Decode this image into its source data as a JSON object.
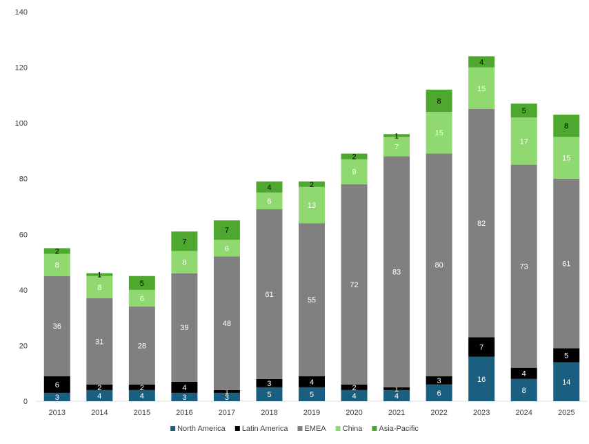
{
  "chart_data": {
    "type": "bar",
    "stacked": true,
    "categories": [
      "2013",
      "2014",
      "2015",
      "2016",
      "2017",
      "2018",
      "2019",
      "2020",
      "2021",
      "2022",
      "2023",
      "2024",
      "2025"
    ],
    "series": [
      {
        "name": "North America",
        "color": "#1a5f80",
        "values": [
          3,
          4,
          4,
          3,
          3,
          5,
          5,
          4,
          4,
          6,
          16,
          8,
          14
        ],
        "label_color": "#ffffff"
      },
      {
        "name": "Latin America",
        "color": "#000000",
        "values": [
          6,
          2,
          2,
          4,
          1,
          3,
          4,
          2,
          1,
          3,
          7,
          4,
          5
        ],
        "label_color": "#ffffff"
      },
      {
        "name": "EMEA",
        "color": "#808080",
        "values": [
          36,
          31,
          28,
          39,
          48,
          61,
          55,
          72,
          83,
          80,
          82,
          73,
          61
        ],
        "label_color": "#ffffff"
      },
      {
        "name": "China",
        "color": "#8fd970",
        "values": [
          8,
          8,
          6,
          8,
          6,
          6,
          13,
          9,
          7,
          15,
          15,
          17,
          15
        ],
        "label_color": "#ffffff"
      },
      {
        "name": "Asia-Pacific",
        "color": "#4ea72e",
        "values": [
          2,
          1,
          5,
          7,
          7,
          4,
          2,
          2,
          1,
          8,
          4,
          5,
          8
        ],
        "label_color": "#000000"
      }
    ],
    "ylim": [
      0,
      140
    ],
    "yticks": [
      0,
      20,
      40,
      60,
      80,
      100,
      120,
      140
    ],
    "grid": false,
    "legend": "bottom",
    "title": "",
    "xlabel": "",
    "ylabel": ""
  }
}
